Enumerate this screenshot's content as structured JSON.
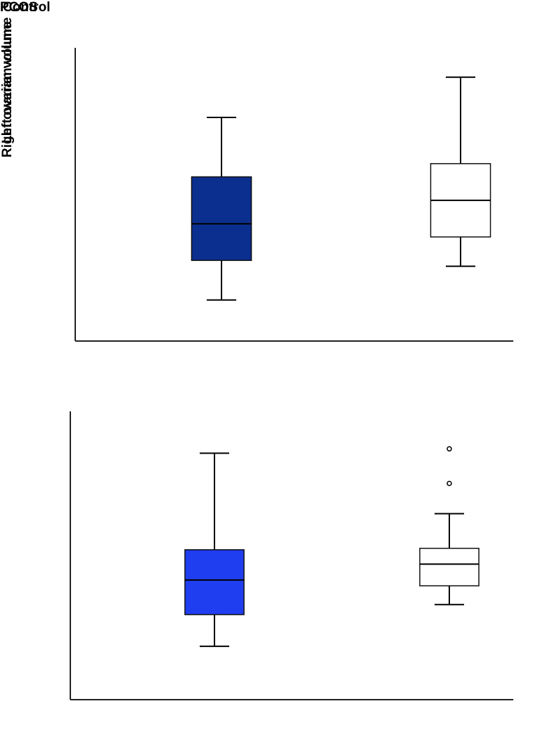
{
  "legend": [
    "PCOS",
    "Control"
  ],
  "chart_data": [
    {
      "type": "box",
      "y_label": "Right ovarian volume",
      "ylim": [
        0,
        20
      ],
      "boxes": [
        {
          "color": "#0b2f8e",
          "min": 2.8,
          "q1": 5.5,
          "median": 8.0,
          "q3": 11.2,
          "max": 15.25,
          "outliers": []
        },
        {
          "color": "#ffffff",
          "min": 5.1,
          "q1": 7.1,
          "median": 9.6,
          "q3": 12.1,
          "max": 18.0,
          "outliers": []
        }
      ]
    },
    {
      "type": "box",
      "y_label": "Left ovarian volume",
      "ylim": [
        0,
        20
      ],
      "boxes": [
        {
          "color": "#1f3ef0",
          "min": 3.7,
          "q1": 5.9,
          "median": 8.3,
          "q3": 10.4,
          "max": 17.1,
          "outliers": []
        },
        {
          "color": "#ffffff",
          "min": 6.6,
          "q1": 7.9,
          "median": 9.4,
          "q3": 10.5,
          "max": 12.9,
          "outliers": [
            15.0,
            17.4
          ]
        }
      ]
    }
  ]
}
